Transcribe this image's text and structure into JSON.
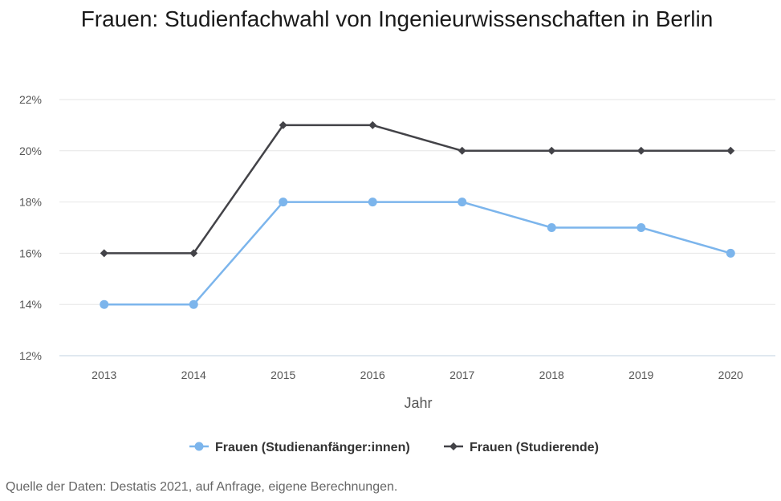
{
  "chart_data": {
    "type": "line",
    "title": "Frauen: Studienfachwahl von Ingenieurwissenschaften in Berlin",
    "xlabel": "Jahr",
    "ylabel": "",
    "categories": [
      "2013",
      "2014",
      "2015",
      "2016",
      "2017",
      "2018",
      "2019",
      "2020"
    ],
    "ylim": [
      12,
      22
    ],
    "yticks": [
      12,
      14,
      16,
      18,
      20,
      22
    ],
    "ytick_labels": [
      "12%",
      "14%",
      "16%",
      "18%",
      "20%",
      "22%"
    ],
    "grid": true,
    "legend_position": "bottom",
    "series": [
      {
        "name": "Frauen (Studienanfänger:innen)",
        "values": [
          14,
          14,
          18,
          18,
          18,
          17,
          17,
          16
        ],
        "color": "#7cb5ec",
        "marker": "circle"
      },
      {
        "name": "Frauen (Studierende)",
        "values": [
          16,
          16,
          21,
          21,
          20,
          20,
          20,
          20
        ],
        "color": "#434348",
        "marker": "diamond"
      }
    ]
  },
  "source_note": "Quelle der Daten: Destatis 2021, auf Anfrage, eigene Berechnungen."
}
